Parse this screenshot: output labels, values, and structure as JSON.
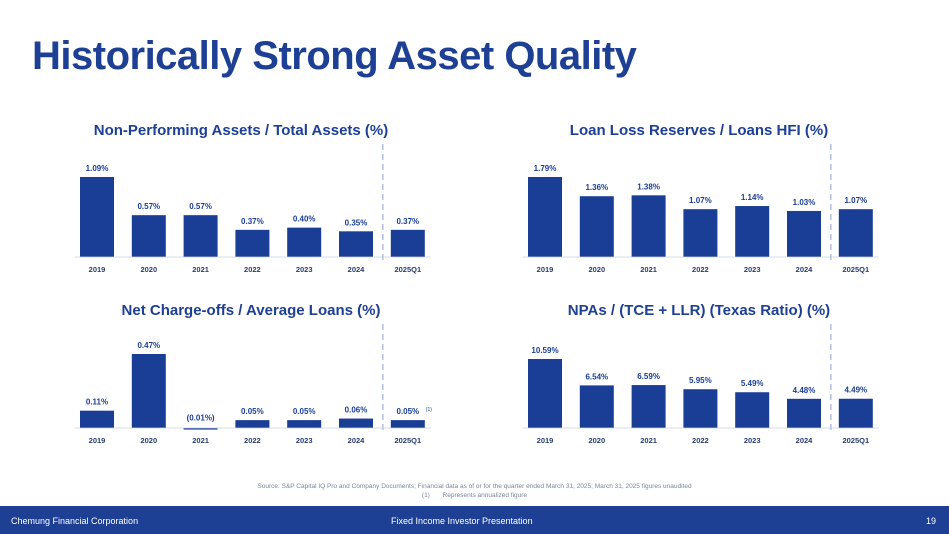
{
  "page": {
    "title": "Historically Strong Asset Quality",
    "source_line": "Source: S&P Capital IQ Pro and Company Documents; Financial data as of or for the quarter ended March 31, 2025; March 31, 2025 figures unaudited",
    "footnote_number": "(1)",
    "footnote_text": "Represents annualized figure",
    "footer_left": "Chemung Financial Corporation",
    "footer_center": "Fixed Income Investor Presentation",
    "page_number": "19"
  },
  "colors": {
    "bar": "#1a3e96",
    "title": "#1d3f94",
    "divider": "#b7c3e0",
    "footer": "#1d3f94"
  },
  "chart_data": [
    {
      "type": "bar",
      "title": "Non-Performing Assets / Total Assets (%)",
      "categories": [
        "2019",
        "2020",
        "2021",
        "2022",
        "2023",
        "2024",
        "2025Q1"
      ],
      "values": [
        1.09,
        0.57,
        0.57,
        0.37,
        0.4,
        0.35,
        0.37
      ],
      "labels": [
        "1.09%",
        "0.57%",
        "0.57%",
        "0.37%",
        "0.40%",
        "0.35%",
        "0.37%"
      ],
      "xlabel": "",
      "ylabel": "",
      "ylim": [
        0,
        1.09
      ],
      "grid": false,
      "divider_before_last": true
    },
    {
      "type": "bar",
      "title": "Loan Loss Reserves / Loans HFI (%)",
      "categories": [
        "2019",
        "2020",
        "2021",
        "2022",
        "2023",
        "2024",
        "2025Q1"
      ],
      "values": [
        1.79,
        1.36,
        1.38,
        1.07,
        1.14,
        1.03,
        1.07
      ],
      "labels": [
        "1.79%",
        "1.36%",
        "1.38%",
        "1.07%",
        "1.14%",
        "1.03%",
        "1.07%"
      ],
      "xlabel": "",
      "ylabel": "",
      "ylim": [
        0,
        1.79
      ],
      "grid": false,
      "divider_before_last": true
    },
    {
      "type": "bar",
      "title": "Net Charge-offs / Average Loans (%)",
      "categories": [
        "2019",
        "2020",
        "2021",
        "2022",
        "2023",
        "2024",
        "2025Q1"
      ],
      "values": [
        0.11,
        0.47,
        -0.01,
        0.05,
        0.05,
        0.06,
        0.05
      ],
      "labels": [
        "0.11%",
        "0.47%",
        "(0.01%)",
        "0.05%",
        "0.05%",
        "0.06%",
        "0.05%"
      ],
      "last_label_footnote": "(1)",
      "xlabel": "",
      "ylabel": "",
      "ylim": [
        0,
        0.47
      ],
      "grid": false,
      "divider_before_last": true
    },
    {
      "type": "bar",
      "title": "NPAs / (TCE + LLR) (Texas Ratio) (%)",
      "categories": [
        "2019",
        "2020",
        "2021",
        "2022",
        "2023",
        "2024",
        "2025Q1"
      ],
      "values": [
        10.59,
        6.54,
        6.59,
        5.95,
        5.49,
        4.48,
        4.49
      ],
      "labels": [
        "10.59%",
        "6.54%",
        "6.59%",
        "5.95%",
        "5.49%",
        "4.48%",
        "4.49%"
      ],
      "xlabel": "",
      "ylabel": "",
      "ylim": [
        0,
        10.59
      ],
      "grid": false,
      "divider_before_last": true
    }
  ]
}
